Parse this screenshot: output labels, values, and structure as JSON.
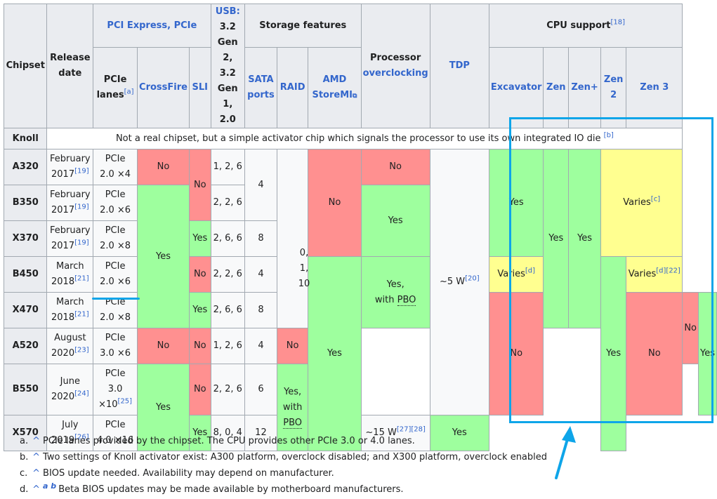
{
  "header": {
    "chipset": "Chipset",
    "release_date_1": "Release",
    "release_date_2": "date",
    "pci_group": "PCI Express, PCIe",
    "pcie_lanes_1": "PCIe",
    "pcie_lanes_2": "lanes",
    "pcie_lanes_note": "[a]",
    "crossfire": "CrossFire",
    "sli": "SLI",
    "usb_lines": [
      "USB:",
      "3.2",
      "Gen 2,",
      "3.2",
      "Gen 1,",
      "2.0"
    ],
    "storage_group": "Storage features",
    "sata_1": "SATA",
    "sata_2": "ports",
    "raid": "RAID",
    "storemi_1": "AMD",
    "storemi_2": "StoreMI",
    "proc_oc_1": "Processor",
    "proc_oc_2": "overclocking",
    "tdp": "TDP",
    "cpu_group": "CPU support",
    "cpu_group_note": "[18]",
    "excavator": "Excavator",
    "zen": "Zen",
    "zenplus": "Zen+",
    "zen2_1": "Zen",
    "zen2_2": "2",
    "zen3": "Zen 3"
  },
  "knoll": {
    "name": "Knoll",
    "text": "Not a real chipset, but a simple activator chip which signals the processor to use its own integrated IO die",
    "note": "[b]"
  },
  "rows": [
    {
      "name": "A320",
      "date1": "February",
      "date2": "2017",
      "ref": "[19]",
      "lanes1": "PCIe",
      "lanes2": "2.0 ×4",
      "usb": "1, 2, 6"
    },
    {
      "name": "B350",
      "date1": "February",
      "date2": "2017",
      "ref": "[19]",
      "lanes1": "PCIe",
      "lanes2": "2.0 ×6",
      "usb": "2, 2, 6"
    },
    {
      "name": "X370",
      "date1": "February",
      "date2": "2017",
      "ref": "[19]",
      "lanes1": "PCIe",
      "lanes2": "2.0 ×8",
      "usb": "2, 6, 6"
    },
    {
      "name": "B450",
      "date1": "March",
      "date2": "2018",
      "ref": "[21]",
      "lanes1": "PCIe",
      "lanes2": "2.0 ×6",
      "usb": "2, 2, 6"
    },
    {
      "name": "X470",
      "date1": "March",
      "date2": "2018",
      "ref": "[21]",
      "lanes1": "PCIe",
      "lanes2": "2.0 ×8",
      "usb": "2, 6, 6"
    },
    {
      "name": "A520",
      "date1": "August",
      "date2": "2020",
      "ref": "[23]",
      "lanes1": "PCIe",
      "lanes2": "3.0 ×6",
      "usb": "1, 2, 6"
    },
    {
      "name": "B550",
      "date1": "June",
      "date2": "2020",
      "ref": "[24]",
      "lanes1": "PCIe",
      "lanes2": "3.0",
      "lanes3": "×10",
      "lanes_ref": "[25]",
      "usb": "2, 2, 6"
    },
    {
      "name": "X570",
      "date1": "July",
      "date2": "2019",
      "ref": "[26]",
      "lanes1": "PCIe",
      "lanes2": "4.0 ×16",
      "usb": "8, 0, 4"
    }
  ],
  "values": {
    "no": "No",
    "yes": "Yes",
    "yes_with": "Yes,",
    "with_pbo_1": "with",
    "with_pbo_2": "PBO",
    "varies": "Varies",
    "varies_c": "[c]",
    "varies_d": "[d]",
    "varies_d22": "[d][22]",
    "sata_4": "4",
    "sata_8": "8",
    "sata_4b": "4",
    "sata_8b": "8",
    "sata_4c": "4",
    "sata_6": "6",
    "sata_12": "12",
    "raid_1": "0,",
    "raid_2": "1,",
    "raid_3": "10",
    "tdp_5": "~5 W",
    "tdp_5_ref": "[20]",
    "tdp_15": "~15 W",
    "tdp_15_ref": "[27][28]"
  },
  "notes": [
    {
      "letter": "a.",
      "caret": "^",
      "text": "PCIe lanes provided by the chipset. The CPU provides other PCIe 3.0 or 4.0 lanes."
    },
    {
      "letter": "b.",
      "caret": "^",
      "text": "Two settings of Knoll activator exist: A300 platform, overclock disabled; and X300 platform, overclock enabled"
    },
    {
      "letter": "c.",
      "caret": "^",
      "text": "BIOS update needed. Availability may depend on manufacturer."
    },
    {
      "letter": "d.",
      "caret": "^",
      "ab": "a b",
      "text": "Beta BIOS updates may be made available by motherboard manufacturers."
    }
  ],
  "colors": {
    "no": "#ff9090",
    "yes": "#9eff9e",
    "varies": "#ffff90",
    "highlight": "#0ea5e9",
    "header": "#eaecf0",
    "link": "#3366cc"
  }
}
